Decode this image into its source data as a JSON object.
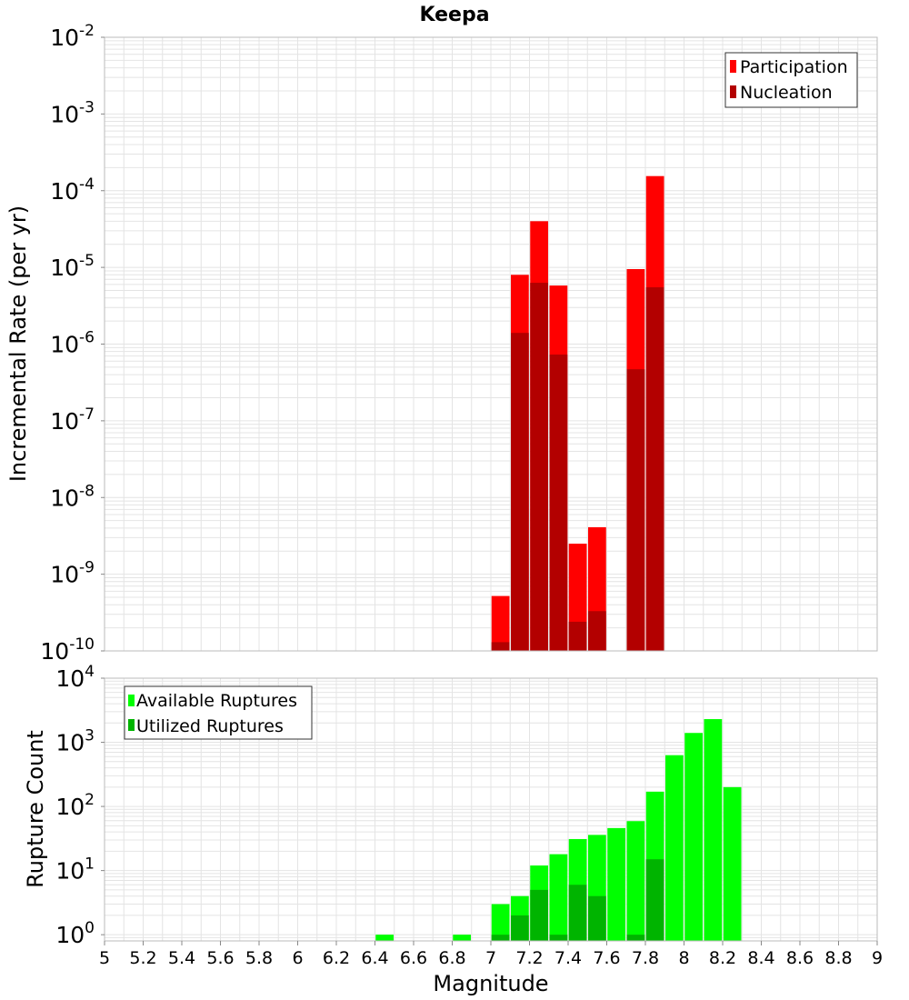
{
  "colors": {
    "participation": "#ff0000",
    "nucleation": "#b30000",
    "available": "#00ff00",
    "utilized": "#00b400",
    "grid": "#e4e4e4",
    "frame": "#bbbbbb"
  },
  "chart_data": [
    {
      "type": "bar",
      "title": "Keepa",
      "ylabel": "Incremental Rate (per yr)",
      "xlabel": "",
      "yscale": "log",
      "ylim": [
        1e-10,
        0.01
      ],
      "xlim": [
        5,
        9
      ],
      "grid": true,
      "legend": {
        "placement": "top-right",
        "entries": [
          "Participation",
          "Nucleation"
        ]
      },
      "ytick_exponents": [
        "-2",
        "-3",
        "-4",
        "-5",
        "-6",
        "-7",
        "-8",
        "-9",
        "-10"
      ],
      "ytick_base": "10",
      "series": [
        {
          "name": "Participation",
          "x": [
            7.05,
            7.15,
            7.25,
            7.35,
            7.45,
            7.55,
            7.75,
            7.85
          ],
          "values": [
            5.2e-10,
            8e-06,
            4e-05,
            5.8e-06,
            2.5e-09,
            4.1e-09,
            9.5e-06,
            0.000155
          ]
        },
        {
          "name": "Nucleation",
          "x": [
            7.05,
            7.15,
            7.25,
            7.35,
            7.45,
            7.55,
            7.75,
            7.85
          ],
          "values": [
            1.3e-10,
            1.4e-06,
            6.3e-06,
            7.3e-07,
            2.4e-10,
            3.3e-10,
            4.7e-07,
            5.5e-06
          ]
        }
      ]
    },
    {
      "type": "bar",
      "title": "",
      "ylabel": "Rupture Count",
      "xlabel": "Magnitude",
      "yscale": "log",
      "ylim": [
        0.8,
        10000
      ],
      "xlim": [
        5,
        9
      ],
      "grid": true,
      "legend": {
        "placement": "top-left",
        "entries": [
          "Available Ruptures",
          "Utilized Ruptures"
        ]
      },
      "ytick_exponents": [
        "4",
        "3",
        "2",
        "1",
        "0"
      ],
      "ytick_base": "10",
      "xtick_labels": [
        "5",
        "5.2",
        "5.4",
        "5.6",
        "5.8",
        "6",
        "6.2",
        "6.4",
        "6.6",
        "6.8",
        "7",
        "7.2",
        "7.4",
        "7.6",
        "7.8",
        "8",
        "8.2",
        "8.4",
        "8.6",
        "8.8",
        "9"
      ],
      "series": [
        {
          "name": "Available Ruptures",
          "x": [
            6.45,
            6.85,
            7.05,
            7.15,
            7.25,
            7.35,
            7.45,
            7.55,
            7.65,
            7.75,
            7.85,
            7.95,
            8.05,
            8.15,
            8.25
          ],
          "values": [
            1,
            1,
            3,
            4,
            12,
            18,
            31,
            36,
            46,
            59,
            170,
            630,
            1400,
            2300,
            200
          ]
        },
        {
          "name": "Utilized Ruptures",
          "x": [
            7.05,
            7.15,
            7.25,
            7.35,
            7.45,
            7.55,
            7.75,
            7.85
          ],
          "values": [
            1,
            2,
            5,
            1,
            6,
            4,
            1,
            15
          ]
        }
      ]
    }
  ]
}
